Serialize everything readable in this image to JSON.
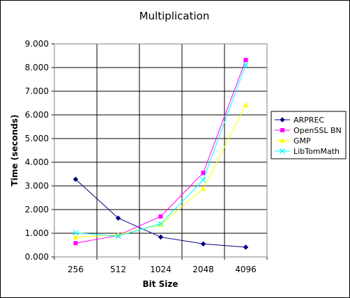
{
  "chart_data": {
    "type": "line",
    "title": "Multiplication",
    "xlabel": "Bit Size",
    "ylabel": "Time (seconds)",
    "categories": [
      "256",
      "512",
      "1024",
      "2048",
      "4096"
    ],
    "ylim": [
      0,
      9
    ],
    "yticks": [
      "0.000",
      "1.000",
      "2.000",
      "3.000",
      "4.000",
      "5.000",
      "6.000",
      "7.000",
      "8.000",
      "9.000"
    ],
    "grid": true,
    "legend_position": "right",
    "series": [
      {
        "name": "ARPREC",
        "color": "#000080",
        "marker": "diamond",
        "values": [
          3.28,
          1.64,
          0.84,
          0.55,
          0.41
        ]
      },
      {
        "name": "OpenSSL BN",
        "color": "#ff00ff",
        "marker": "square",
        "values": [
          0.58,
          0.91,
          1.71,
          3.55,
          8.32
        ]
      },
      {
        "name": "GMP",
        "color": "#ffff00",
        "marker": "triangle",
        "values": [
          0.83,
          0.93,
          1.36,
          2.88,
          6.42
        ]
      },
      {
        "name": "LibTomMath",
        "color": "#00ffff",
        "marker": "x",
        "values": [
          1.02,
          0.88,
          1.4,
          3.25,
          8.12
        ]
      }
    ]
  }
}
